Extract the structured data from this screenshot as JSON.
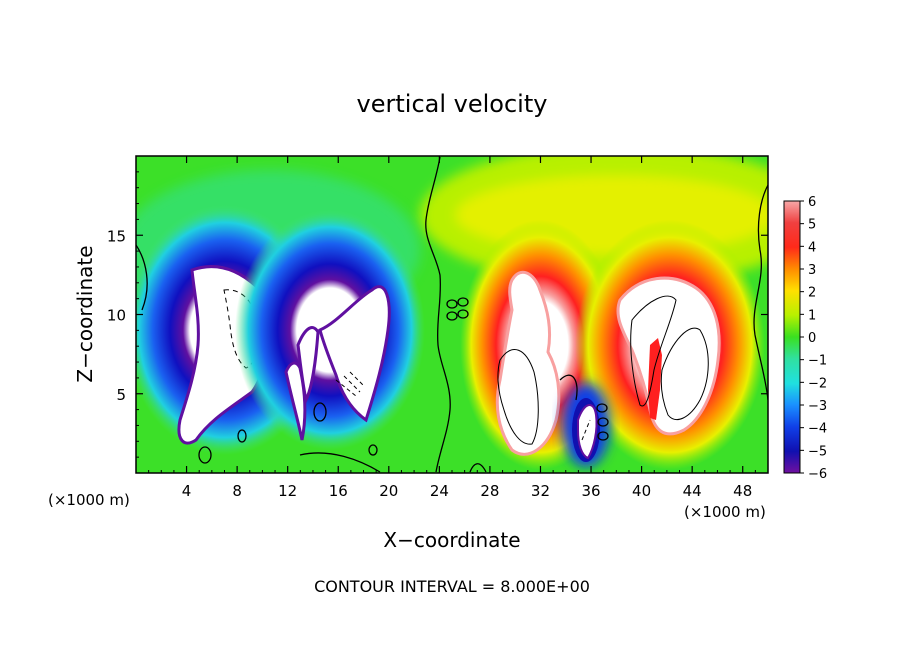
{
  "chart_data": {
    "type": "heatmap",
    "title": "vertical velocity",
    "xlabel": "X−coordinate",
    "ylabel": "Z−coordinate",
    "x_unit_left": "(×1000 m)",
    "x_unit_right": "(×1000 m)",
    "xlim": [
      0,
      50
    ],
    "ylim": [
      0,
      20
    ],
    "x_ticks": [
      4,
      8,
      12,
      16,
      20,
      24,
      28,
      32,
      36,
      40,
      44,
      48
    ],
    "y_ticks": [
      5,
      10,
      15
    ],
    "colorbar": {
      "min": -6,
      "max": 6,
      "tick_values": [
        6,
        5,
        4,
        3,
        2,
        1,
        0,
        -1,
        -2,
        -3,
        -4,
        -5,
        -6
      ],
      "tick_labels": [
        "6",
        "5",
        "4",
        "3",
        "2",
        "1",
        "0",
        "−1",
        "−2",
        "−3",
        "−4",
        "−5",
        "−6"
      ]
    },
    "footer": "CONTOUR INTERVAL = 8.000E+00",
    "regions": [
      {
        "kind": "downdraft",
        "x_range": [
          2,
          11
        ],
        "z_range": [
          1,
          16
        ],
        "peak": -6
      },
      {
        "kind": "downdraft",
        "x_range": [
          11,
          21
        ],
        "z_range": [
          1,
          16
        ],
        "peak": -6
      },
      {
        "kind": "updraft",
        "x_range": [
          27,
          35
        ],
        "z_range": [
          1,
          15
        ],
        "peak": 6
      },
      {
        "kind": "updraft",
        "x_range": [
          37,
          47
        ],
        "z_range": [
          2,
          15
        ],
        "peak": 6
      },
      {
        "kind": "downdraft",
        "x_range": [
          33.5,
          36.5
        ],
        "z_range": [
          0.5,
          6.5
        ],
        "peak": -6
      }
    ]
  }
}
